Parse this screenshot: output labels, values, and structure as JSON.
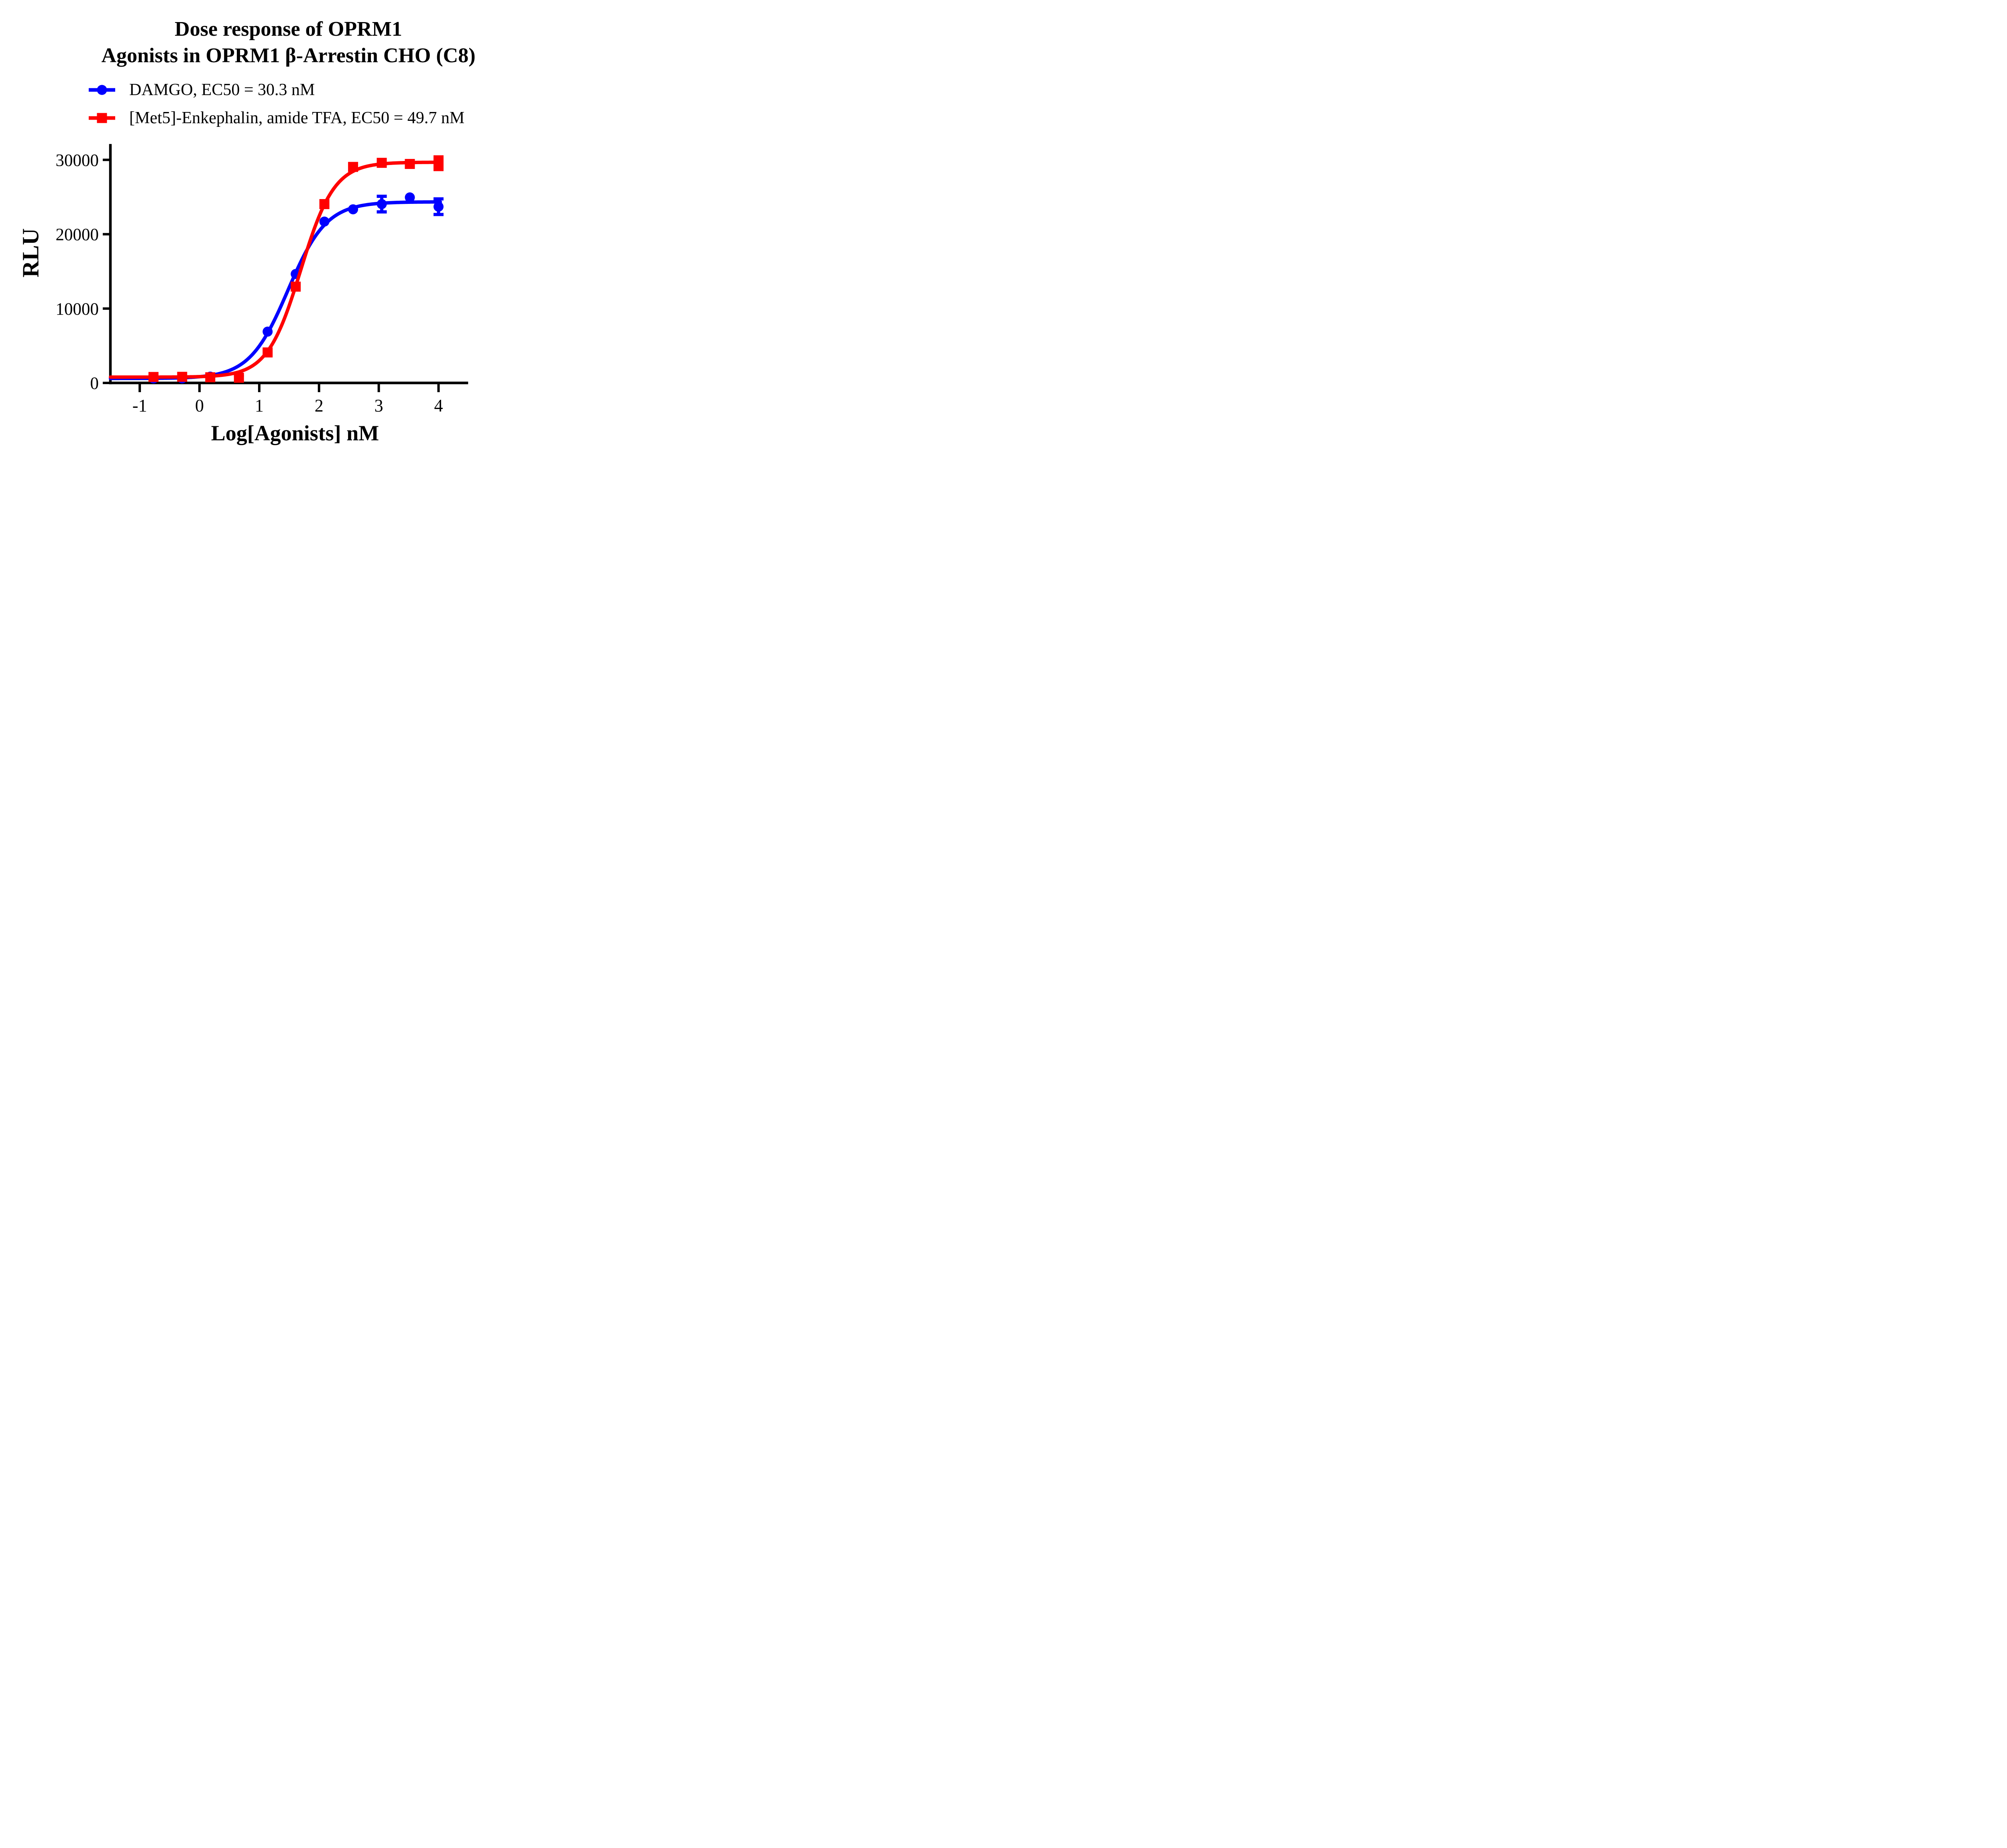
{
  "figure": {
    "title_line1": "Dose response of OPRM1",
    "title_line2": "Agonists in OPRM1 β-Arrestin CHO (C8)"
  },
  "legend": [
    {
      "label": "DAMGO, EC50 = 30.3 nM",
      "marker": "circle",
      "color": "#0000FF"
    },
    {
      "label": "[Met5]-Enkephalin, amide TFA, EC50 = 49.7 nM",
      "marker": "square",
      "color": "#FF0000"
    }
  ],
  "chart_data": {
    "type": "scatter",
    "title": "Dose response of OPRM1 Agonists in OPRM1 β-Arrestin CHO (C8)",
    "xlabel": "Log[Agonists] nM",
    "ylabel": "RLU",
    "x_ticks": [
      -1,
      0,
      1,
      2,
      3,
      4
    ],
    "y_ticks": [
      0,
      10000,
      20000,
      30000
    ],
    "xlim": [
      -1.49,
      4.46
    ],
    "ylim": [
      -750,
      32000
    ],
    "grid": false,
    "legend_position": "top-left",
    "series": [
      {
        "name": "DAMGO, EC50 = 30.3 nM",
        "ec50_nM": 30.3,
        "color": "#0000FF",
        "marker": "circle",
        "x_log_nM": [
          -0.77,
          -0.29,
          0.18,
          0.66,
          1.14,
          1.61,
          2.09,
          2.57,
          3.05,
          3.52,
          4.0
        ],
        "y_rlu": [
          600,
          610,
          850,
          950,
          6900,
          14650,
          21700,
          23350,
          24050,
          24950,
          23700
        ],
        "y_err": [
          0,
          0,
          0,
          0,
          0,
          0,
          0,
          0,
          1050,
          0,
          1050
        ],
        "fit": {
          "bottom": 600,
          "top": 24350,
          "logEC50": 1.481,
          "hill": 1.35,
          "x_start": -1.49,
          "x_end": 4.03
        }
      },
      {
        "name": "[Met5]-Enkephalin, amide TFA, EC50 = 49.7 nM",
        "ec50_nM": 49.7,
        "color": "#FF0000",
        "marker": "square",
        "x_log_nM": [
          -0.77,
          -0.29,
          0.18,
          0.66,
          1.14,
          1.61,
          2.09,
          2.57,
          3.05,
          3.52,
          4.0
        ],
        "y_rlu": [
          800,
          820,
          760,
          700,
          4100,
          12950,
          24050,
          29050,
          29600,
          29450,
          29550
        ],
        "y_err": [
          0,
          0,
          0,
          0,
          0,
          0,
          0,
          0,
          0,
          0,
          850
        ],
        "fit": {
          "bottom": 780,
          "top": 29680,
          "logEC50": 1.696,
          "hill": 1.55,
          "x_start": -1.49,
          "x_end": 4.03
        }
      }
    ]
  }
}
